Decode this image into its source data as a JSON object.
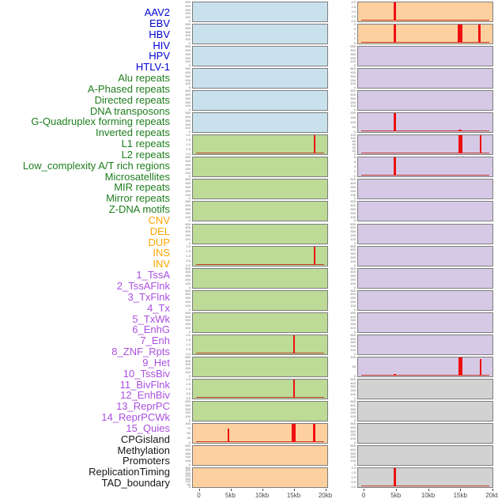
{
  "figure": {
    "title": "",
    "x_axis": {
      "tick_labels": [
        "0",
        "5kb",
        "10kb",
        "15kb",
        "20kb"
      ],
      "range_kb": [
        0,
        20
      ]
    },
    "colors": {
      "label_virus": "#0000d0",
      "label_repeat": "#1e7d1e",
      "label_sv": "#ffa500",
      "label_chromhmm": "#ab4fe0",
      "label_other": "#161616",
      "panel_blue": "#c9e1ec",
      "panel_green": "#bdda97",
      "panel_orange": "#fed0a0",
      "panel_purple": "#d6c9e6",
      "panel_gray": "#d2d2d2",
      "panel_border": "#7d7d7d",
      "spike_red": "#ee1010",
      "baseline_red": "#bc3a2a",
      "ytick_text": "#6a6a6a",
      "xaxis_text": "#4a4a4a"
    }
  },
  "chart_data": {
    "type": "bar",
    "description": "44 genomic feature tracks in two panel columns; red spikes = signal vs position (0-20kb)",
    "x_unit": "kb",
    "x_ticks": [
      "0",
      "5kb",
      "10kb",
      "15kb",
      "20kb"
    ],
    "x_tick_kb": [
      0,
      5,
      10,
      15,
      20
    ],
    "tracks": [
      {
        "label": "AAV2",
        "group": "virus",
        "col": 0,
        "row": 0,
        "bg": "blue",
        "yticks": [
          "500",
          "400",
          "300",
          "200",
          "100",
          "0"
        ],
        "spikes": [],
        "baseline": false
      },
      {
        "label": "EBV",
        "group": "virus",
        "col": 0,
        "row": 1,
        "bg": "blue",
        "yticks": [
          "500",
          "400",
          "300",
          "200",
          "100",
          "0"
        ],
        "spikes": [],
        "baseline": false
      },
      {
        "label": "HBV",
        "group": "virus",
        "col": 0,
        "row": 2,
        "bg": "blue",
        "yticks": [
          "500",
          "400",
          "300",
          "200",
          "100",
          "0"
        ],
        "spikes": [],
        "baseline": false
      },
      {
        "label": "HIV",
        "group": "virus",
        "col": 0,
        "row": 3,
        "bg": "blue",
        "yticks": [
          "500",
          "400",
          "300",
          "200",
          "100",
          "0"
        ],
        "spikes": [],
        "baseline": false
      },
      {
        "label": "HPV",
        "group": "virus",
        "col": 0,
        "row": 4,
        "bg": "blue",
        "yticks": [
          "500",
          "400",
          "300",
          "200",
          "100",
          "0"
        ],
        "spikes": [],
        "baseline": false
      },
      {
        "label": "HTLV-1",
        "group": "virus",
        "col": 0,
        "row": 5,
        "bg": "blue",
        "yticks": [
          "500",
          "400",
          "300",
          "200",
          "100",
          "0"
        ],
        "spikes": [],
        "baseline": false
      },
      {
        "label": "Alu repeats",
        "group": "repeat",
        "col": 0,
        "row": 6,
        "bg": "green",
        "yticks": [
          "2.0",
          "1.5",
          "1.0",
          "0.5",
          "0.0"
        ],
        "spikes": [
          {
            "kb": 18.3,
            "w": 2,
            "h": 1
          }
        ],
        "baseline": true
      },
      {
        "label": "A-Phased repeats",
        "group": "repeat",
        "col": 0,
        "row": 7,
        "bg": "green",
        "yticks": [
          "500",
          "400",
          "300",
          "200",
          "100",
          "0"
        ],
        "spikes": [],
        "baseline": false
      },
      {
        "label": "Directed repeats",
        "group": "repeat",
        "col": 0,
        "row": 8,
        "bg": "green",
        "yticks": [
          "500",
          "400",
          "300",
          "200",
          "100",
          "0"
        ],
        "spikes": [],
        "baseline": false
      },
      {
        "label": "DNA transposons",
        "group": "repeat",
        "col": 0,
        "row": 9,
        "bg": "green",
        "yticks": [
          "500",
          "400",
          "300",
          "200",
          "100",
          "0"
        ],
        "spikes": [],
        "baseline": false
      },
      {
        "label": "G-Quadruplex forming repeats",
        "group": "repeat",
        "col": 0,
        "row": 10,
        "bg": "green",
        "yticks": [
          "500",
          "400",
          "300",
          "200",
          "100",
          "0"
        ],
        "spikes": [],
        "baseline": false
      },
      {
        "label": "Inverted repeats",
        "group": "repeat",
        "col": 0,
        "row": 11,
        "bg": "green",
        "yticks": [
          "2.0",
          "1.5",
          "1.0",
          "0.5",
          "0.0"
        ],
        "spikes": [
          {
            "kb": 18.3,
            "w": 2,
            "h": 1
          }
        ],
        "baseline": true
      },
      {
        "label": "L1 repeats",
        "group": "repeat",
        "col": 0,
        "row": 12,
        "bg": "green",
        "yticks": [
          "500",
          "400",
          "300",
          "200",
          "100",
          "0"
        ],
        "spikes": [],
        "baseline": false
      },
      {
        "label": "L2 repeats",
        "group": "repeat",
        "col": 0,
        "row": 13,
        "bg": "green",
        "yticks": [
          "500",
          "400",
          "300",
          "200",
          "100",
          "0"
        ],
        "spikes": [],
        "baseline": false
      },
      {
        "label": "Low_complexity A/T rich regions",
        "group": "repeat",
        "col": 0,
        "row": 14,
        "bg": "green",
        "yticks": [
          "500",
          "400",
          "300",
          "200",
          "100",
          "0"
        ],
        "spikes": [],
        "baseline": false
      },
      {
        "label": "Microsatellites",
        "group": "repeat",
        "col": 0,
        "row": 15,
        "bg": "green",
        "yticks": [
          "2.0",
          "1.5",
          "1.0",
          "0.5",
          "0.0"
        ],
        "spikes": [
          {
            "kb": 15,
            "w": 2,
            "h": 1
          }
        ],
        "baseline": true
      },
      {
        "label": "MIR repeats",
        "group": "repeat",
        "col": 0,
        "row": 16,
        "bg": "green",
        "yticks": [
          "500",
          "400",
          "300",
          "200",
          "100",
          "0"
        ],
        "spikes": [],
        "baseline": false
      },
      {
        "label": "Mirror repeats",
        "group": "repeat",
        "col": 0,
        "row": 17,
        "bg": "green",
        "yticks": [
          "2.0",
          "1.5",
          "1.0",
          "0.5",
          "0.0"
        ],
        "spikes": [
          {
            "kb": 15,
            "w": 2,
            "h": 1
          }
        ],
        "baseline": true
      },
      {
        "label": "Z-DNA motifs",
        "group": "repeat",
        "col": 0,
        "row": 18,
        "bg": "green",
        "yticks": [
          "500",
          "400",
          "300",
          "200",
          "100",
          "0"
        ],
        "spikes": [],
        "baseline": false
      },
      {
        "label": "CNV",
        "group": "sv",
        "col": 0,
        "row": 19,
        "bg": "orange",
        "yticks": [
          "100",
          "75",
          "50",
          "25",
          "0"
        ],
        "spikes": [
          {
            "kb": 4.7,
            "w": 2,
            "h": 0.75
          },
          {
            "kb": 15,
            "w": 5,
            "h": 1
          },
          {
            "kb": 18.3,
            "w": 3,
            "h": 1
          }
        ],
        "baseline": true
      },
      {
        "label": "DEL",
        "group": "sv",
        "col": 0,
        "row": 20,
        "bg": "orange",
        "yticks": [
          "500",
          "400",
          "300",
          "200",
          "100",
          "0"
        ],
        "spikes": [],
        "baseline": false
      },
      {
        "label": "DUP",
        "group": "sv",
        "col": 0,
        "row": 21,
        "bg": "orange",
        "yticks": [
          "350",
          "300",
          "250",
          "200",
          "150",
          "100",
          "50",
          "0"
        ],
        "spikes": [],
        "baseline": false
      },
      {
        "label": "INS",
        "group": "sv",
        "col": 1,
        "row": 0,
        "bg": "orange",
        "yticks": [
          "2.0",
          "1.5",
          "1.0",
          "0.5",
          "0.0"
        ],
        "spikes": [
          {
            "kb": 4.8,
            "w": 3,
            "h": 1
          }
        ],
        "baseline": true
      },
      {
        "label": "INV",
        "group": "sv",
        "col": 1,
        "row": 1,
        "bg": "orange",
        "yticks": [
          "4",
          "3",
          "2",
          "1",
          "0"
        ],
        "spikes": [
          {
            "kb": 4.8,
            "w": 3,
            "h": 1
          },
          {
            "kb": 15,
            "w": 6,
            "h": 1
          },
          {
            "kb": 18,
            "w": 3,
            "h": 1
          }
        ],
        "baseline": true
      },
      {
        "label": "1_TssA",
        "group": "chromhmm",
        "col": 1,
        "row": 2,
        "bg": "purple",
        "yticks": [
          "500",
          "400",
          "300",
          "200",
          "100",
          "0"
        ],
        "spikes": [],
        "baseline": false
      },
      {
        "label": "2_TssAFlnk",
        "group": "chromhmm",
        "col": 1,
        "row": 3,
        "bg": "purple",
        "yticks": [
          "500",
          "400",
          "300",
          "200",
          "100",
          "0"
        ],
        "spikes": [],
        "baseline": false
      },
      {
        "label": "3_TxFlnk",
        "group": "chromhmm",
        "col": 1,
        "row": 4,
        "bg": "purple",
        "yticks": [
          "500",
          "400",
          "300",
          "200",
          "100",
          "0"
        ],
        "spikes": [],
        "baseline": false
      },
      {
        "label": "4_Tx",
        "group": "chromhmm",
        "col": 1,
        "row": 5,
        "bg": "purple",
        "yticks": [
          "200",
          "150",
          "100",
          "50",
          "0"
        ],
        "spikes": [
          {
            "kb": 4.8,
            "w": 3,
            "h": 1
          },
          {
            "kb": 15,
            "w": 4,
            "h": 0.1
          }
        ],
        "baseline": true
      },
      {
        "label": "5_TxWk",
        "group": "chromhmm",
        "col": 1,
        "row": 6,
        "bg": "purple",
        "yticks": [
          "120",
          "100",
          "80",
          "60",
          "40",
          "20",
          "0"
        ],
        "spikes": [
          {
            "kb": 15,
            "w": 5,
            "h": 1
          },
          {
            "kb": 18.2,
            "w": 2,
            "h": 1
          }
        ],
        "baseline": true
      },
      {
        "label": "6_EnhG",
        "group": "chromhmm",
        "col": 1,
        "row": 7,
        "bg": "purple",
        "yticks": [
          "8",
          "6",
          "4",
          "2",
          "0"
        ],
        "spikes": [
          {
            "kb": 4.8,
            "w": 3,
            "h": 1
          }
        ],
        "baseline": true
      },
      {
        "label": "7_Enh",
        "group": "chromhmm",
        "col": 1,
        "row": 8,
        "bg": "purple",
        "yticks": [
          "500",
          "400",
          "300",
          "200",
          "100",
          "0"
        ],
        "spikes": [],
        "baseline": false
      },
      {
        "label": "8_ZNF_Rpts",
        "group": "chromhmm",
        "col": 1,
        "row": 9,
        "bg": "purple",
        "yticks": [
          "500",
          "400",
          "300",
          "200",
          "100",
          "0"
        ],
        "spikes": [],
        "baseline": false
      },
      {
        "label": "9_Het",
        "group": "chromhmm",
        "col": 1,
        "row": 10,
        "bg": "purple",
        "yticks": [
          "500",
          "400",
          "300",
          "200",
          "100",
          "0"
        ],
        "spikes": [],
        "baseline": false
      },
      {
        "label": "10_TssBiv",
        "group": "chromhmm",
        "col": 1,
        "row": 11,
        "bg": "purple",
        "yticks": [
          "500",
          "400",
          "300",
          "200",
          "100",
          "0"
        ],
        "spikes": [],
        "baseline": false
      },
      {
        "label": "11_BivFlnk",
        "group": "chromhmm",
        "col": 1,
        "row": 12,
        "bg": "purple",
        "yticks": [
          "500",
          "400",
          "300",
          "200",
          "100",
          "0"
        ],
        "spikes": [],
        "baseline": false
      },
      {
        "label": "12_EnhBiv",
        "group": "chromhmm",
        "col": 1,
        "row": 13,
        "bg": "purple",
        "yticks": [
          "500",
          "400",
          "300",
          "200",
          "100",
          "0"
        ],
        "spikes": [],
        "baseline": false
      },
      {
        "label": "13_ReprPC",
        "group": "chromhmm",
        "col": 1,
        "row": 14,
        "bg": "purple",
        "yticks": [
          "500",
          "400",
          "300",
          "200",
          "100",
          "0"
        ],
        "spikes": [],
        "baseline": false
      },
      {
        "label": "14_ReprPCWk",
        "group": "chromhmm",
        "col": 1,
        "row": 15,
        "bg": "purple",
        "yticks": [
          "500",
          "400",
          "300",
          "200",
          "100",
          "0"
        ],
        "spikes": [],
        "baseline": false
      },
      {
        "label": "15_Quies",
        "group": "chromhmm",
        "col": 1,
        "row": 16,
        "bg": "purple",
        "yticks": [
          "100",
          "50",
          "0"
        ],
        "spikes": [
          {
            "kb": 4.8,
            "w": 3,
            "h": 0.07
          },
          {
            "kb": 15,
            "w": 5,
            "h": 1
          },
          {
            "kb": 18.2,
            "w": 2,
            "h": 0.9
          }
        ],
        "baseline": true
      },
      {
        "label": "CPGisland",
        "group": "other",
        "col": 1,
        "row": 17,
        "bg": "gray",
        "yticks": [
          "500",
          "400",
          "300",
          "200",
          "100",
          "0"
        ],
        "spikes": [],
        "baseline": false
      },
      {
        "label": "Methylation",
        "group": "other",
        "col": 1,
        "row": 18,
        "bg": "gray",
        "yticks": [
          "500",
          "400",
          "300",
          "200",
          "100",
          "0"
        ],
        "spikes": [],
        "baseline": false
      },
      {
        "label": "Promoters",
        "group": "other",
        "col": 1,
        "row": 19,
        "bg": "gray",
        "yticks": [
          "500",
          "400",
          "300",
          "200",
          "100",
          "0"
        ],
        "spikes": [],
        "baseline": false
      },
      {
        "label": "ReplicationTiming",
        "group": "other",
        "col": 1,
        "row": 20,
        "bg": "gray",
        "yticks": [
          "500",
          "400",
          "300",
          "200",
          "100",
          "0"
        ],
        "spikes": [],
        "baseline": false
      },
      {
        "label": "TAD_boundary",
        "group": "other",
        "col": 1,
        "row": 21,
        "bg": "gray",
        "yticks": [
          "2.0",
          "1.5",
          "1.0",
          "0.5",
          "0.0"
        ],
        "spikes": [
          {
            "kb": 4.8,
            "w": 3,
            "h": 1
          }
        ],
        "baseline": true
      }
    ]
  }
}
